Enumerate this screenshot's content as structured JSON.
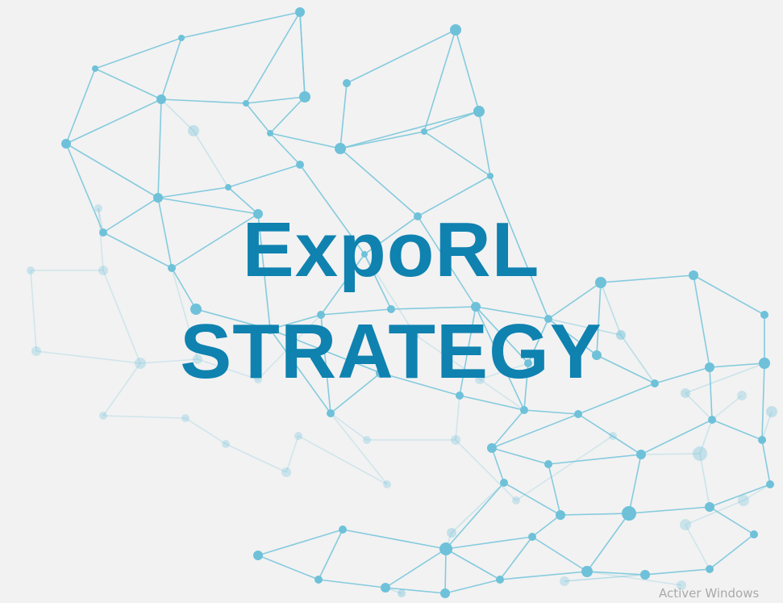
{
  "slide": {
    "title_line_1": "ExpoRL",
    "title_line_2": "STRATEGY"
  },
  "watermark": {
    "text": "Activer Windows"
  },
  "colors": {
    "background": "#f2f2f2",
    "title": "#0f82b0",
    "network_line": "#7ec8dc",
    "network_node": "#6ec1d9"
  }
}
